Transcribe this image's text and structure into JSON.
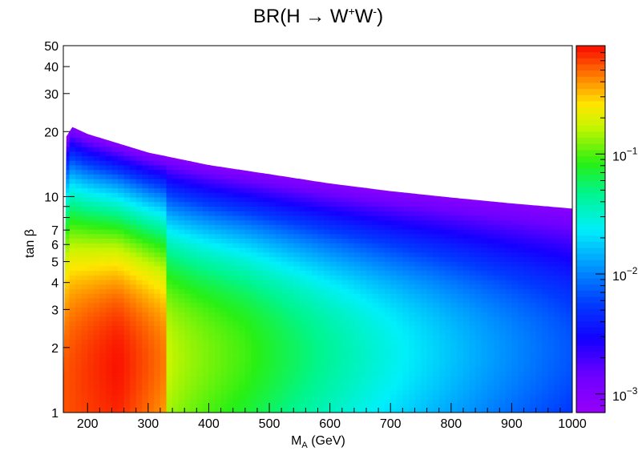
{
  "chart_data": {
    "type": "heatmap",
    "title": {
      "text": "BR(H → W",
      "sup1": "+",
      "mid": "W",
      "sup2": "-",
      "end": ")"
    },
    "xlabel": {
      "main": "M",
      "sub": "A",
      "rest": " (GeV)"
    },
    "ylabel": "tan β",
    "x_range": [
      160,
      1000
    ],
    "y_range": [
      1,
      50
    ],
    "y_scale": "log",
    "z_scale": "log",
    "z_range": [
      0.0007,
      0.8
    ],
    "colormap": "rainbow (violet → blue → cyan → green → yellow → red)",
    "x_ticks": [
      "200",
      "300",
      "400",
      "500",
      "600",
      "700",
      "800",
      "900",
      "1000"
    ],
    "y_ticks": [
      "1",
      "2",
      "3",
      "4",
      "5",
      "6",
      "7",
      "10",
      "20",
      "30",
      "40",
      "50"
    ],
    "colorbar_ticks": [
      {
        "value": 0.001,
        "mantissa": "10",
        "exp": "−3"
      },
      {
        "value": 0.01,
        "mantissa": "10",
        "exp": "−2"
      },
      {
        "value": 0.1,
        "mantissa": "10",
        "exp": "−1"
      }
    ],
    "upper_boundary_tanb": [
      {
        "x": 165,
        "y": 19
      },
      {
        "x": 175,
        "y": 21
      },
      {
        "x": 200,
        "y": 19.5
      },
      {
        "x": 300,
        "y": 16
      },
      {
        "x": 400,
        "y": 14
      },
      {
        "x": 500,
        "y": 12.7
      },
      {
        "x": 600,
        "y": 11.5
      },
      {
        "x": 700,
        "y": 10.6
      },
      {
        "x": 800,
        "y": 9.9
      },
      {
        "x": 900,
        "y": 9.3
      },
      {
        "x": 1000,
        "y": 8.8
      }
    ],
    "region_values": [
      {
        "region": "red band",
        "x": [
          165,
          250
        ],
        "y": [
          1,
          5
        ],
        "value": 0.5
      },
      {
        "region": "yellow band",
        "x": [
          250,
          330
        ],
        "y": [
          1,
          4
        ],
        "value": 0.2
      },
      {
        "region": "green zone",
        "x": [
          330,
          460
        ],
        "y": [
          1,
          8
        ],
        "value": 0.06
      },
      {
        "region": "cyan zone",
        "x": [
          460,
          650
        ],
        "y": [
          1,
          6
        ],
        "value": 0.012
      },
      {
        "region": "blue zone",
        "x": [
          650,
          1000
        ],
        "y": [
          1,
          6
        ],
        "value": 0.003
      },
      {
        "region": "violet edge",
        "x": [
          165,
          1000
        ],
        "y": [
          8.5,
          21
        ],
        "value": 0.0008
      }
    ]
  }
}
